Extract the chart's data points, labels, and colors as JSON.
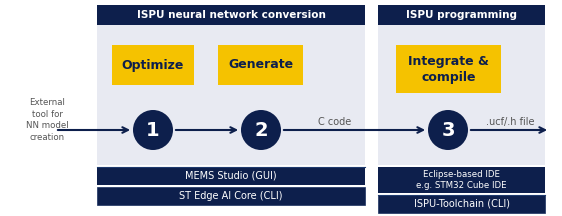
{
  "bg_color": "#ffffff",
  "panel_bg": "#e8eaf2",
  "header_bg": "#0d1f4c",
  "header_text_color": "#ffffff",
  "yellow_box_color": "#f5c200",
  "yellow_text_color": "#0d1f4c",
  "circle_color": "#0d1f4c",
  "circle_text_color": "#ffffff",
  "arrow_color": "#0d1f4c",
  "label_text_color": "#555555",
  "left_panel_header": "ISPU neural network conversion",
  "right_panel_header": "ISPU programming",
  "box1_label": "Optimize",
  "box2_label": "Generate",
  "box3_label": "Integrate &\ncompile",
  "circle1_num": "1",
  "circle2_num": "2",
  "circle3_num": "3",
  "left_text": "External\ntool for\nNN model\ncreation",
  "mid_label": "C code",
  "right_label": ".ucf/.h file",
  "bottom_left_row1": "MEMS Studio (GUI)",
  "bottom_left_row2": "ST Edge AI Core (CLI)",
  "bottom_right_row1": "Eclipse-based IDE\ne.g. STM32 Cube IDE",
  "bottom_right_row2": "ISPU-Toolchain (CLI)"
}
